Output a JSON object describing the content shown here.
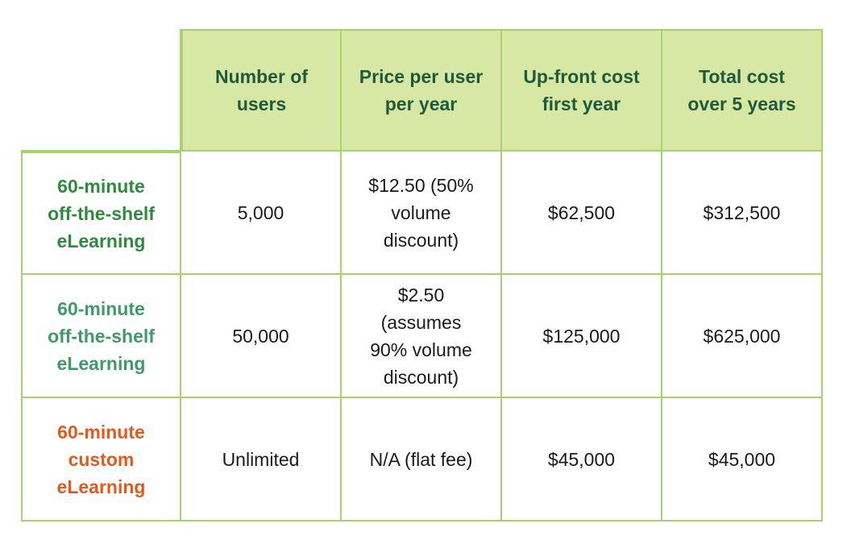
{
  "colors": {
    "header_bg": "#d7e8a4",
    "header_text": "#1f5a3a",
    "border": "#a8d36b",
    "row1_label": "#2e8b3e",
    "row2_label": "#3f9a6a",
    "row3_label": "#e35a1c"
  },
  "header": {
    "col1": "Number of\nusers",
    "col2": "Price per user\nper year",
    "col3": "Up-front cost\nfirst year",
    "col4": "Total cost\nover 5 years"
  },
  "rows": [
    {
      "label": "60-minute\noff-the-shelf\neLearning",
      "users": "5,000",
      "price": "$12.50 (50%\nvolume\ndiscount)",
      "upfront": "$62,500",
      "total": "$312,500"
    },
    {
      "label": "60-minute\noff-the-shelf\neLearning",
      "users": "50,000",
      "price": "$2.50\n(assumes\n90% volume\ndiscount)",
      "upfront": "$125,000",
      "total": "$625,000"
    },
    {
      "label": "60-minute\ncustom\neLearning",
      "users": "Unlimited",
      "price": "N/A (flat fee)",
      "upfront": "$45,000",
      "total": "$45,000"
    }
  ]
}
